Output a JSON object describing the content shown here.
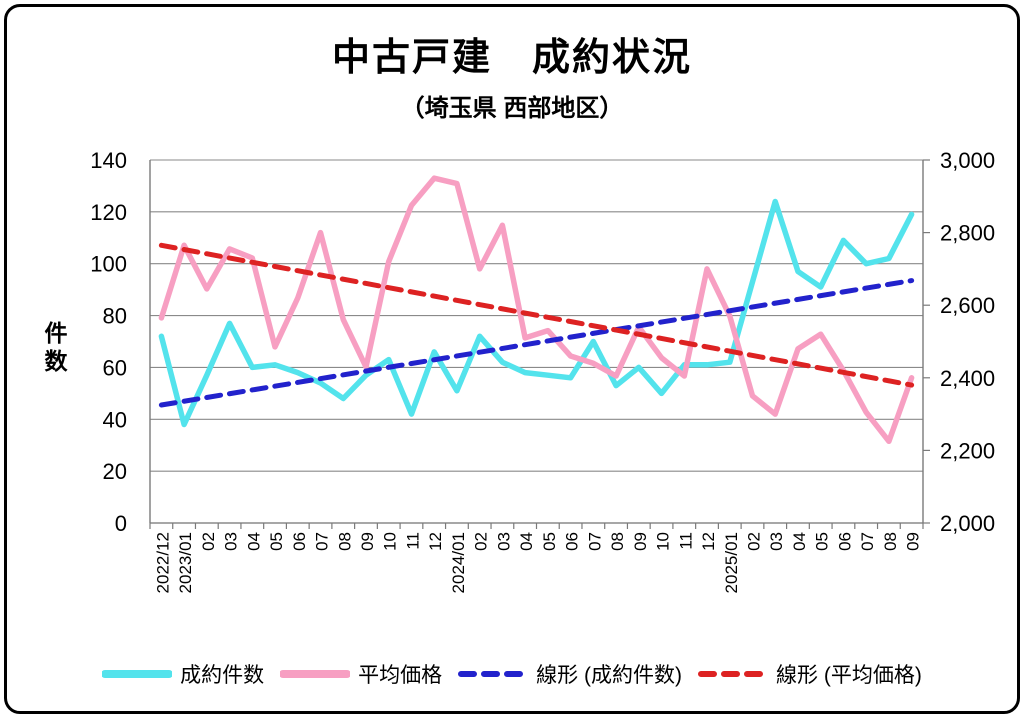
{
  "title": "中古戸建　成約状況",
  "subtitle": "（埼玉県 西部地区）",
  "colors": {
    "contracts": "#53E3EC",
    "price": "#F79FC2",
    "trend_contracts": "#2222CC",
    "trend_price": "#DD2222",
    "grid": "#8a8a8a",
    "axis": "#7a7a7a"
  },
  "legend": {
    "items": [
      {
        "label": "成約件数",
        "color": "#53E3EC",
        "dash": false
      },
      {
        "label": "平均価格",
        "color": "#F79FC2",
        "dash": false
      },
      {
        "label": "線形 (成約件数)",
        "color": "#2222CC",
        "dash": true
      },
      {
        "label": "線形 (平均価格)",
        "color": "#DD2222",
        "dash": true
      }
    ]
  },
  "chart_data": {
    "type": "line",
    "title": "中古戸建 成約状況（埼玉県 西部地区）",
    "ylabel_left": "件数",
    "legend_position": "bottom",
    "grid": true,
    "categories": [
      "2022/12",
      "2023/01",
      "02",
      "03",
      "04",
      "05",
      "06",
      "07",
      "08",
      "09",
      "10",
      "11",
      "12",
      "2024/01",
      "02",
      "03",
      "04",
      "05",
      "06",
      "07",
      "08",
      "09",
      "10",
      "11",
      "12",
      "2025/01",
      "02",
      "03",
      "04",
      "05",
      "06",
      "07",
      "08",
      "09"
    ],
    "left_axis": {
      "min": 0,
      "max": 140,
      "step": 20,
      "ticks": [
        "0",
        "20",
        "40",
        "60",
        "80",
        "100",
        "120",
        "140"
      ]
    },
    "right_axis": {
      "min": 2000,
      "max": 3000,
      "step": 200,
      "ticks": [
        "2,000",
        "2,200",
        "2,400",
        "2,600",
        "2,800",
        "3,000"
      ]
    },
    "series": [
      {
        "name": "成約件数",
        "axis": "left",
        "style": "solid",
        "color": "#53E3EC",
        "values": [
          72,
          38,
          57,
          77,
          60,
          61,
          58,
          54,
          48,
          57,
          63,
          42,
          66,
          51,
          72,
          62,
          58,
          57,
          56,
          70,
          53,
          60,
          50,
          61,
          61,
          62,
          93,
          124,
          97,
          91,
          109,
          100,
          102,
          119
        ]
      },
      {
        "name": "平均価格",
        "axis": "right",
        "style": "solid",
        "color": "#F79FC2",
        "values": [
          2565,
          2765,
          2645,
          2755,
          2730,
          2485,
          2620,
          2800,
          2560,
          2430,
          2720,
          2875,
          2950,
          2935,
          2700,
          2820,
          2510,
          2530,
          2460,
          2440,
          2405,
          2540,
          2455,
          2405,
          2700,
          2570,
          2350,
          2300,
          2480,
          2520,
          2420,
          2305,
          2225,
          2400
        ]
      },
      {
        "name": "線形 (成約件数)",
        "axis": "left",
        "style": "dashed",
        "color": "#2222CC",
        "trend_endpoints": [
          45.5,
          93.5
        ]
      },
      {
        "name": "線形 (平均価格)",
        "axis": "right",
        "style": "dashed",
        "color": "#DD2222",
        "trend_endpoints": [
          2765,
          2380
        ]
      }
    ]
  }
}
